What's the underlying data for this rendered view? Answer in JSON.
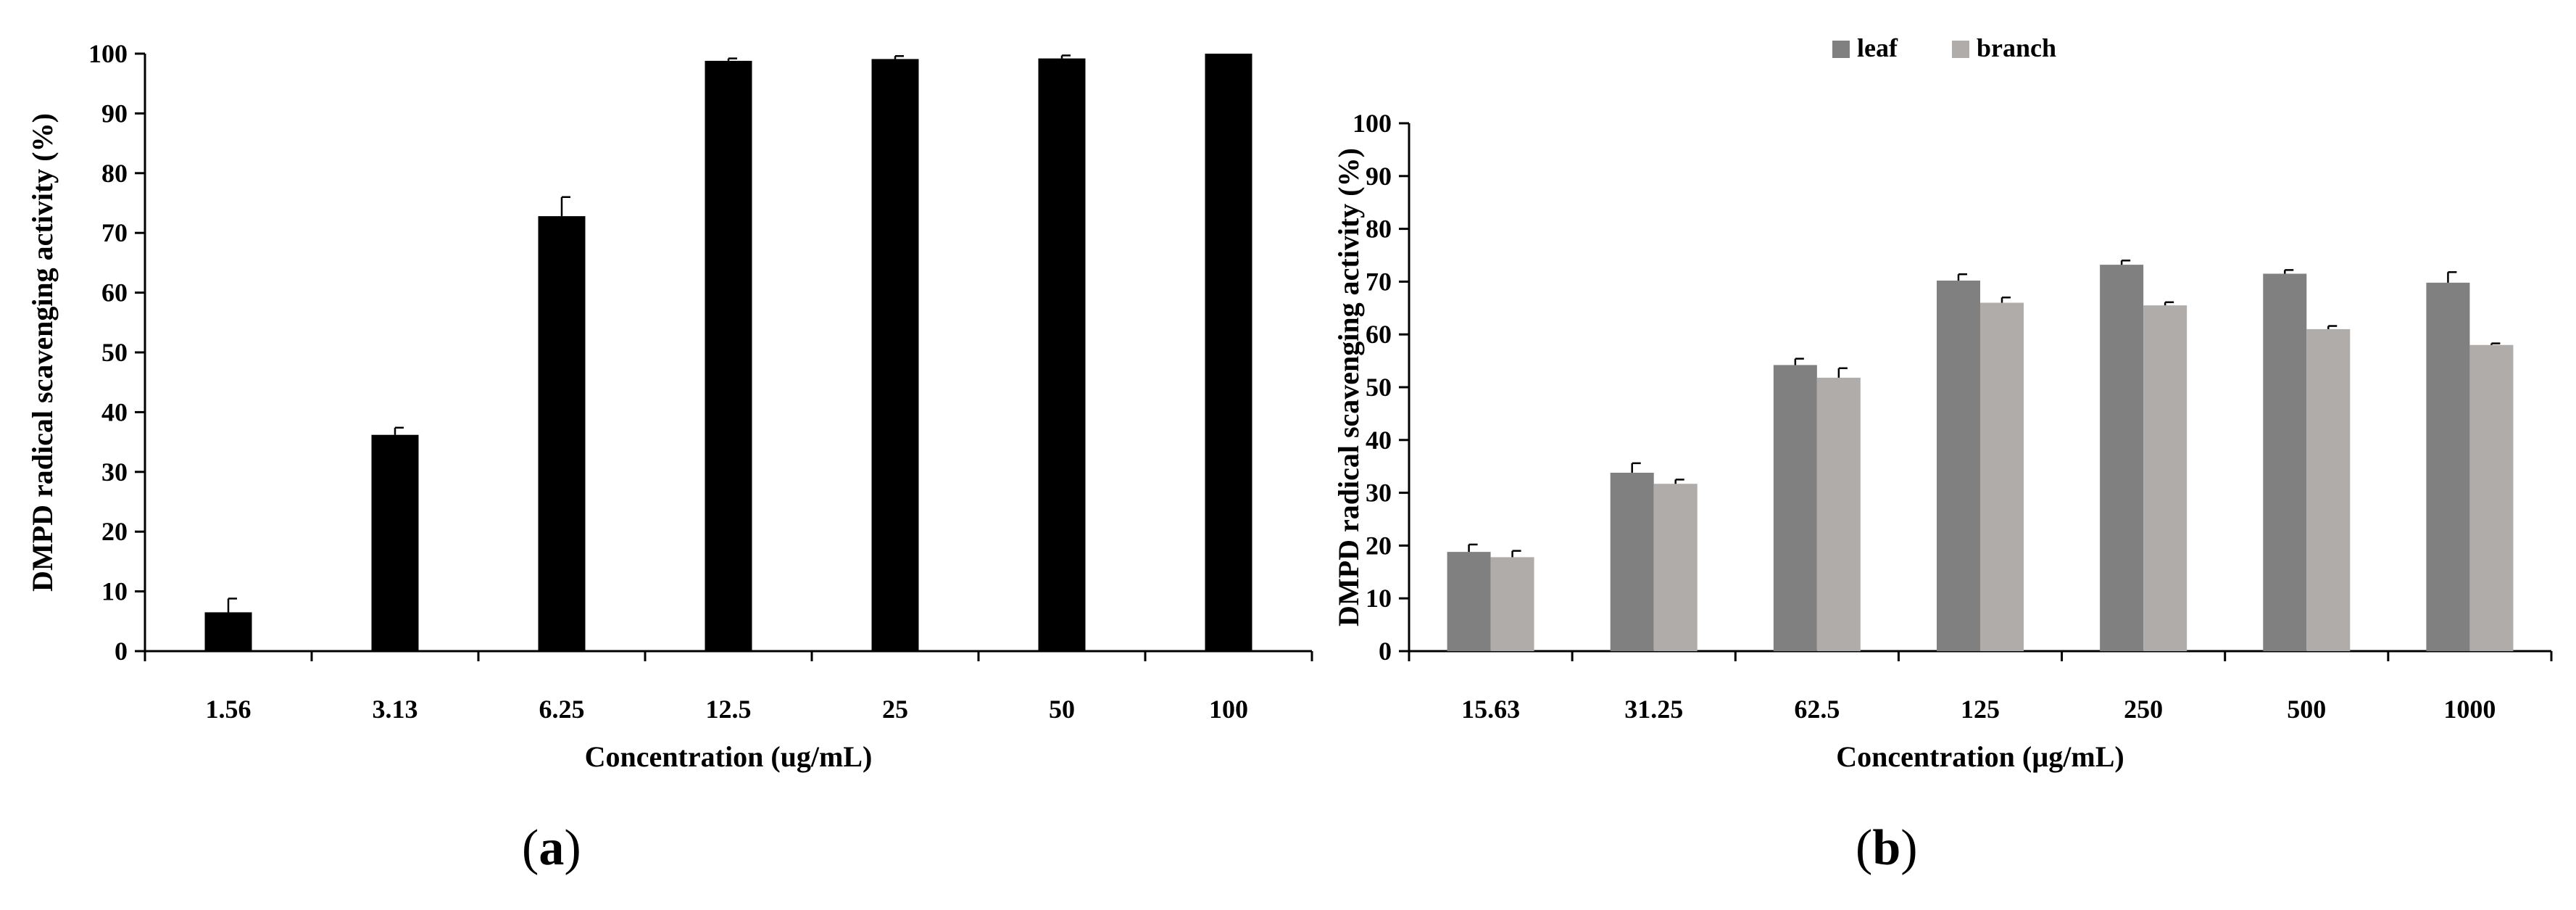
{
  "chart_data": [
    {
      "type": "bar",
      "panel_label": "a",
      "title": "",
      "xlabel": "Concentration (ug/mL)",
      "ylabel": "DMPD radical scavenging activity (%)",
      "ylim": [
        0,
        100
      ],
      "yticks": [
        0,
        10,
        20,
        30,
        40,
        50,
        60,
        70,
        80,
        90,
        100
      ],
      "categories": [
        "1.56",
        "3.13",
        "6.25",
        "12.5",
        "25",
        "50",
        "100"
      ],
      "series": [
        {
          "values": [
            6.5,
            36.2,
            72.8,
            98.8,
            99.1,
            99.2,
            100
          ],
          "errors": [
            2.3,
            1.2,
            3.2,
            0.4,
            0.5,
            0.5,
            0
          ],
          "color": "#000000"
        }
      ],
      "grid": false,
      "legend": "none"
    },
    {
      "type": "bar",
      "panel_label": "b",
      "title": "",
      "xlabel": "Concentration (µg/mL)",
      "ylabel": "DMPD radical scavenging activity (%)",
      "ylim": [
        0,
        100
      ],
      "yticks": [
        0,
        10,
        20,
        30,
        40,
        50,
        60,
        70,
        80,
        90,
        100
      ],
      "categories": [
        "15.63",
        "31.25",
        "62.5",
        "125",
        "250",
        "500",
        "1000"
      ],
      "series": [
        {
          "name": "leaf",
          "values": [
            18.8,
            33.8,
            54.2,
            70.2,
            73.2,
            71.5,
            69.8
          ],
          "errors": [
            1.4,
            1.8,
            1.2,
            1.2,
            0.8,
            0.7,
            2.0
          ],
          "color": "#808080"
        },
        {
          "name": "branch",
          "values": [
            17.8,
            31.7,
            51.8,
            66.0,
            65.5,
            61.0,
            58.0
          ],
          "errors": [
            1.2,
            0.8,
            1.8,
            1.0,
            0.6,
            0.6,
            0.3
          ],
          "color": "#b0acaa"
        }
      ],
      "grid": false,
      "legend": "top-center"
    }
  ]
}
